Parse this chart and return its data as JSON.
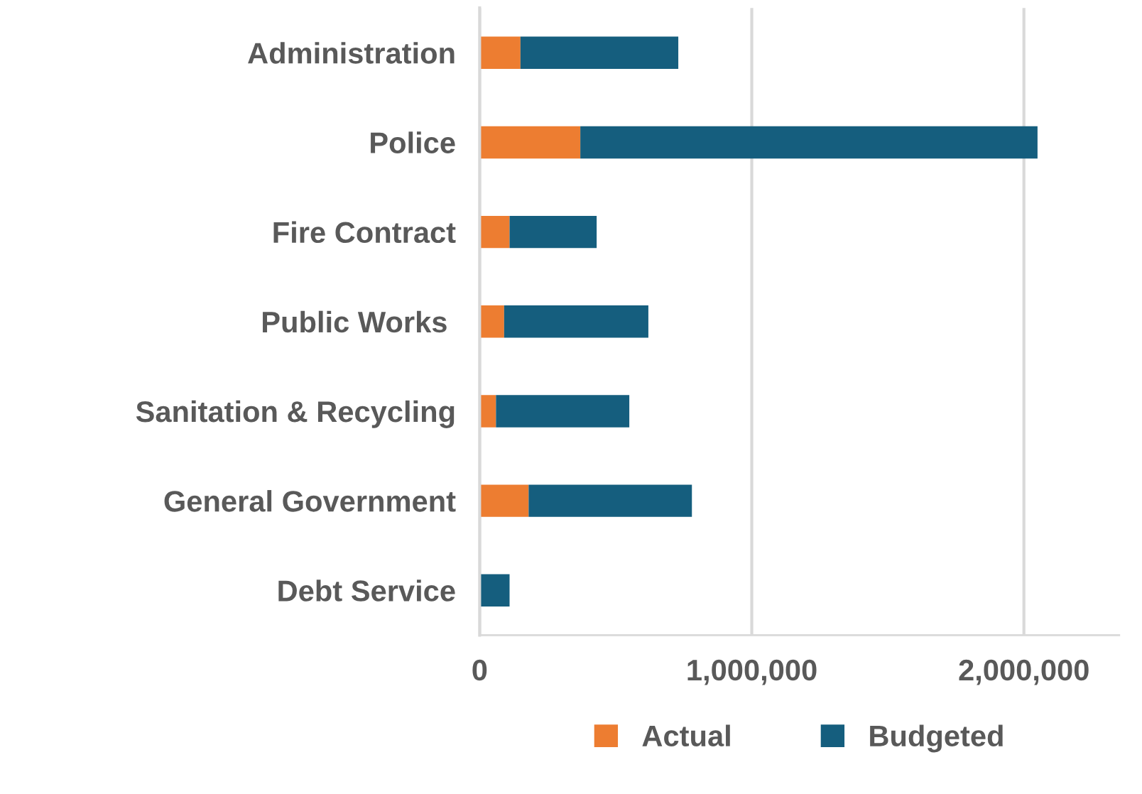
{
  "chart_data": {
    "type": "bar",
    "orientation": "horizontal",
    "stacked": true,
    "categories": [
      "Administration",
      "Police",
      "Fire Contract",
      "Public Works ",
      "Sanitation & Recycling",
      "General Government",
      "Debt Service"
    ],
    "series": [
      {
        "name": "Actual",
        "color": "#ed7d31",
        "values": [
          150000,
          370000,
          110000,
          90000,
          60000,
          180000,
          0
        ]
      },
      {
        "name": "Budgeted",
        "color": "#155e7e",
        "values": [
          580000,
          1680000,
          320000,
          530000,
          490000,
          600000,
          110000
        ]
      }
    ],
    "xlim": [
      0,
      2350000
    ],
    "xticks": [
      {
        "value": 0,
        "label": "0"
      },
      {
        "value": 1000000,
        "label": "1,000,000"
      },
      {
        "value": 2000000,
        "label": "2,000,000"
      }
    ],
    "grid": "x",
    "legend": "bottom"
  }
}
